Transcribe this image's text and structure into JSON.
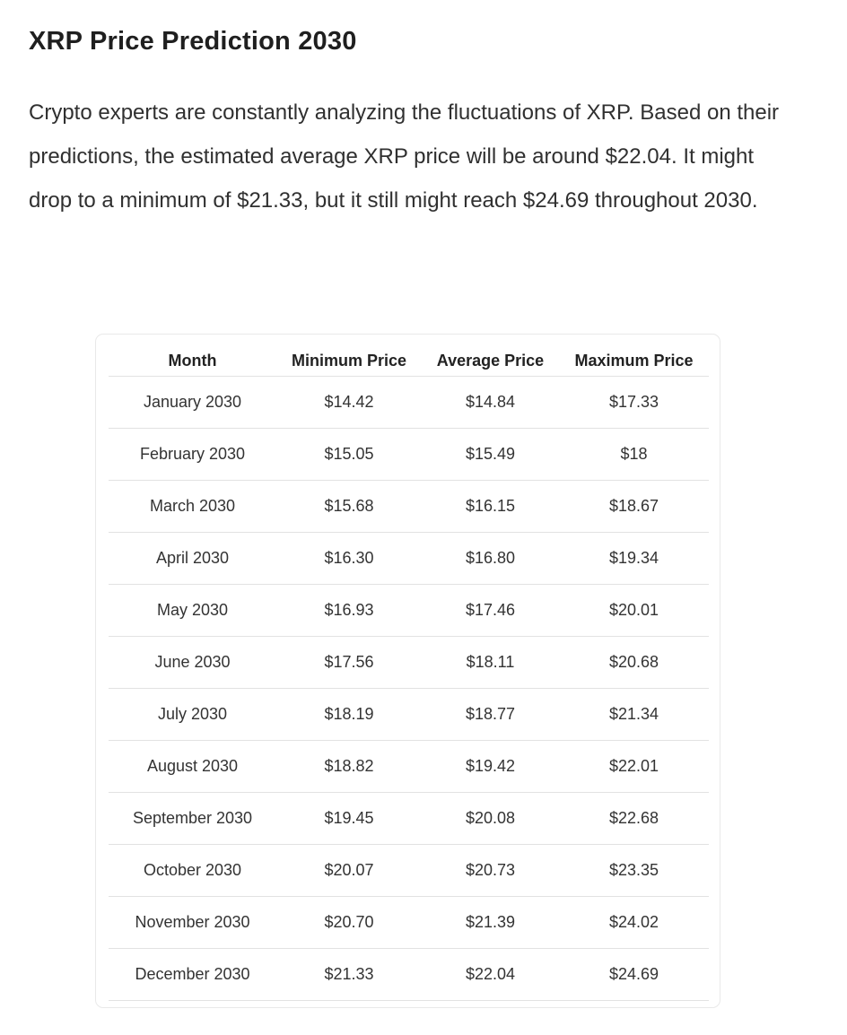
{
  "article": {
    "title": "XRP Price Prediction 2030",
    "paragraph": "Crypto experts are constantly analyzing the fluctuations of XRP. Based on their predictions, the estimated average XRP price will be around $22.04. It might drop to a minimum of $21.33, but it still might reach $24.69 throughout 2030."
  },
  "table": {
    "headers": [
      "Month",
      "Minimum Price",
      "Average Price",
      "Maximum Price"
    ],
    "rows": [
      [
        "January 2030",
        "$14.42",
        "$14.84",
        "$17.33"
      ],
      [
        "February 2030",
        "$15.05",
        "$15.49",
        "$18"
      ],
      [
        "March 2030",
        "$15.68",
        "$16.15",
        "$18.67"
      ],
      [
        "April 2030",
        "$16.30",
        "$16.80",
        "$19.34"
      ],
      [
        "May 2030",
        "$16.93",
        "$17.46",
        "$20.01"
      ],
      [
        "June 2030",
        "$17.56",
        "$18.11",
        "$20.68"
      ],
      [
        "July 2030",
        "$18.19",
        "$18.77",
        "$21.34"
      ],
      [
        "August 2030",
        "$18.82",
        "$19.42",
        "$22.01"
      ],
      [
        "September 2030",
        "$19.45",
        "$20.08",
        "$22.68"
      ],
      [
        "October 2030",
        "$20.07",
        "$20.73",
        "$23.35"
      ],
      [
        "November 2030",
        "$20.70",
        "$21.39",
        "$24.02"
      ],
      [
        "December 2030",
        "$21.33",
        "$22.04",
        "$24.69"
      ]
    ]
  }
}
